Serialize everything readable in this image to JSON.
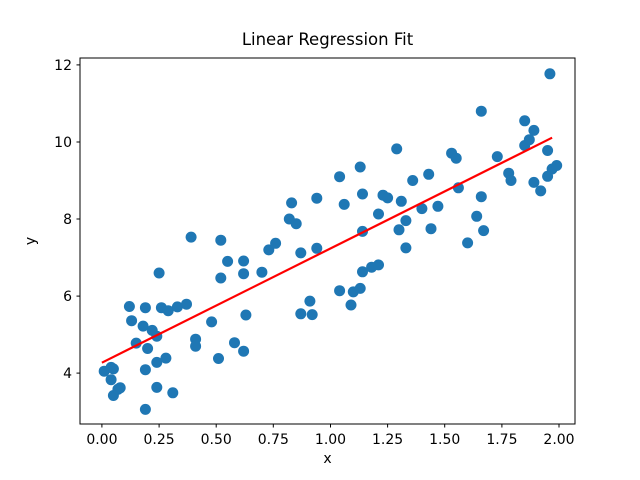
{
  "chart_data": {
    "type": "scatter",
    "title": "Linear Regression Fit",
    "xlabel": "x",
    "ylabel": "y",
    "legend": null,
    "grid": false,
    "xlim": [
      -0.096,
      2.07
    ],
    "ylim": [
      2.68,
      12.18
    ],
    "x_ticks": [
      {
        "value": 0.0,
        "label": "0.00"
      },
      {
        "value": 0.25,
        "label": "0.25"
      },
      {
        "value": 0.5,
        "label": "0.50"
      },
      {
        "value": 0.75,
        "label": "0.75"
      },
      {
        "value": 1.0,
        "label": "1.00"
      },
      {
        "value": 1.25,
        "label": "1.25"
      },
      {
        "value": 1.5,
        "label": "1.50"
      },
      {
        "value": 1.75,
        "label": "1.75"
      },
      {
        "value": 2.0,
        "label": "2.00"
      }
    ],
    "y_ticks": [
      {
        "value": 4,
        "label": "4"
      },
      {
        "value": 6,
        "label": "6"
      },
      {
        "value": 8,
        "label": "8"
      },
      {
        "value": 10,
        "label": "10"
      },
      {
        "value": 12,
        "label": "12"
      }
    ],
    "point_color": "#1f77b4",
    "line_color": "#ff0000",
    "axis_color": "#000000",
    "series": [
      {
        "name": "data-points",
        "points": [
          [
            0.01,
            4.05
          ],
          [
            0.04,
            4.15
          ],
          [
            0.05,
            4.11
          ],
          [
            0.04,
            3.83
          ],
          [
            0.05,
            3.42
          ],
          [
            0.07,
            3.58
          ],
          [
            0.08,
            3.62
          ],
          [
            0.12,
            5.73
          ],
          [
            0.13,
            5.36
          ],
          [
            0.15,
            4.78
          ],
          [
            0.18,
            5.22
          ],
          [
            0.19,
            5.7
          ],
          [
            0.19,
            4.09
          ],
          [
            0.19,
            3.06
          ],
          [
            0.2,
            4.64
          ],
          [
            0.22,
            5.11
          ],
          [
            0.24,
            4.96
          ],
          [
            0.24,
            4.28
          ],
          [
            0.24,
            3.63
          ],
          [
            0.25,
            6.6
          ],
          [
            0.26,
            5.7
          ],
          [
            0.28,
            4.39
          ],
          [
            0.29,
            5.62
          ],
          [
            0.31,
            3.49
          ],
          [
            0.33,
            5.72
          ],
          [
            0.37,
            5.79
          ],
          [
            0.39,
            7.53
          ],
          [
            0.41,
            4.88
          ],
          [
            0.41,
            4.7
          ],
          [
            0.48,
            5.33
          ],
          [
            0.51,
            4.38
          ],
          [
            0.52,
            7.45
          ],
          [
            0.52,
            6.47
          ],
          [
            0.55,
            6.9
          ],
          [
            0.58,
            4.79
          ],
          [
            0.62,
            6.91
          ],
          [
            0.62,
            6.58
          ],
          [
            0.62,
            4.57
          ],
          [
            0.63,
            5.51
          ],
          [
            0.7,
            6.62
          ],
          [
            0.73,
            7.2
          ],
          [
            0.76,
            7.37
          ],
          [
            0.82,
            8.0
          ],
          [
            0.85,
            7.88
          ],
          [
            0.83,
            8.42
          ],
          [
            0.87,
            7.12
          ],
          [
            0.87,
            5.54
          ],
          [
            0.91,
            5.87
          ],
          [
            0.92,
            5.52
          ],
          [
            0.94,
            7.24
          ],
          [
            0.94,
            8.54
          ],
          [
            1.04,
            9.1
          ],
          [
            1.04,
            6.14
          ],
          [
            1.06,
            8.38
          ],
          [
            1.09,
            5.77
          ],
          [
            1.1,
            6.11
          ],
          [
            1.13,
            6.2
          ],
          [
            1.13,
            9.35
          ],
          [
            1.14,
            7.68
          ],
          [
            1.14,
            6.63
          ],
          [
            1.14,
            8.65
          ],
          [
            1.18,
            6.75
          ],
          [
            1.21,
            6.81
          ],
          [
            1.21,
            8.13
          ],
          [
            1.23,
            8.62
          ],
          [
            1.25,
            8.55
          ],
          [
            1.29,
            9.82
          ],
          [
            1.3,
            7.72
          ],
          [
            1.31,
            8.46
          ],
          [
            1.33,
            7.25
          ],
          [
            1.33,
            7.96
          ],
          [
            1.36,
            9.0
          ],
          [
            1.4,
            8.27
          ],
          [
            1.43,
            9.16
          ],
          [
            1.44,
            7.75
          ],
          [
            1.47,
            8.33
          ],
          [
            1.53,
            9.71
          ],
          [
            1.55,
            9.58
          ],
          [
            1.56,
            8.81
          ],
          [
            1.6,
            7.38
          ],
          [
            1.64,
            8.07
          ],
          [
            1.66,
            8.58
          ],
          [
            1.67,
            7.7
          ],
          [
            1.66,
            10.8
          ],
          [
            1.73,
            9.62
          ],
          [
            1.78,
            9.19
          ],
          [
            1.79,
            9.0
          ],
          [
            1.85,
            10.55
          ],
          [
            1.85,
            9.91
          ],
          [
            1.87,
            10.06
          ],
          [
            1.89,
            10.3
          ],
          [
            1.89,
            8.95
          ],
          [
            1.92,
            8.73
          ],
          [
            1.95,
            9.78
          ],
          [
            1.95,
            9.11
          ],
          [
            1.96,
            11.77
          ],
          [
            1.97,
            9.3
          ],
          [
            1.99,
            9.39
          ]
        ]
      }
    ],
    "fit_line": {
      "name": "regression-line",
      "x": [
        0.0,
        1.97
      ],
      "y": [
        4.27,
        10.11
      ]
    }
  }
}
